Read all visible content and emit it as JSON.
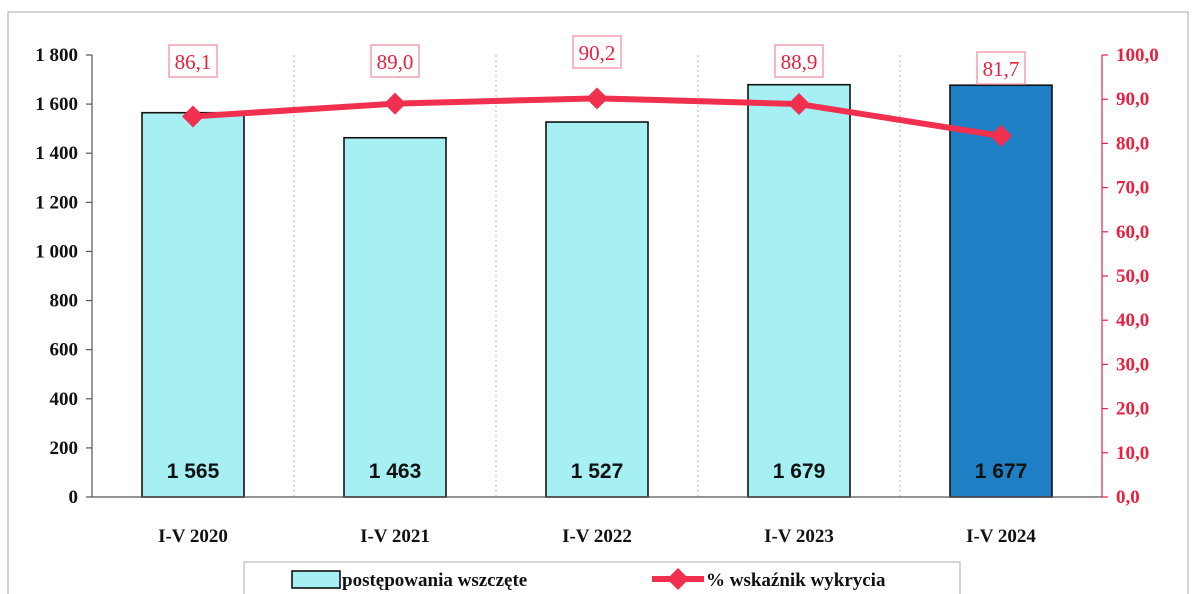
{
  "chart_data": {
    "type": "bar",
    "categories": [
      "I-V 2020",
      "I-V 2021",
      "I-V 2022",
      "I-V 2023",
      "I-V 2024"
    ],
    "series": [
      {
        "name": "postępowania wszczęte",
        "type": "bar",
        "axis": "left",
        "values": [
          1565,
          1463,
          1527,
          1679,
          1677
        ],
        "labels": [
          "1 565",
          "1 463",
          "1 527",
          "1 679",
          "1 677"
        ],
        "colors": [
          "#a6f0f4",
          "#a6f0f4",
          "#a6f0f4",
          "#a6f0f4",
          "#1f7fc4"
        ]
      },
      {
        "name": "% wskaźnik wykrycia",
        "type": "line",
        "axis": "right",
        "values": [
          86.1,
          89.0,
          90.2,
          88.9,
          81.7
        ],
        "labels": [
          "86,1",
          "89,0",
          "90,2",
          "88,9",
          "81,7"
        ],
        "color": "#f0304e"
      }
    ],
    "y_left": {
      "ylim": [
        0,
        1800
      ],
      "ticks": [
        0,
        200,
        400,
        600,
        800,
        1000,
        1200,
        1400,
        1600,
        1800
      ],
      "tick_labels": [
        "0",
        "200",
        "400",
        "600",
        "800",
        "1 000",
        "1 200",
        "1 400",
        "1 600",
        "1 800"
      ]
    },
    "y_right": {
      "ylim": [
        0,
        100
      ],
      "ticks": [
        0,
        10,
        20,
        30,
        40,
        50,
        60,
        70,
        80,
        90,
        100
      ],
      "tick_labels": [
        "0,0",
        "10,0",
        "20,0",
        "30,0",
        "40,0",
        "50,0",
        "60,0",
        "70,0",
        "80,0",
        "90,0",
        "100,0"
      ],
      "color": "#e8213f"
    },
    "grid": "vertical dotted",
    "legend_position": "bottom"
  }
}
